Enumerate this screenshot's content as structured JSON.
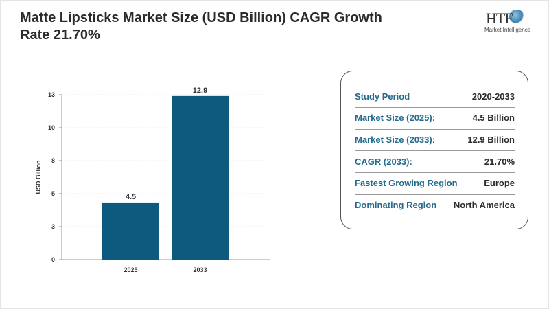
{
  "header": {
    "title": "Matte Lipsticks Market Size (USD Billion) CAGR Growth Rate 21.70%",
    "logo_text": "HTF",
    "logo_subtitle": "Market Intelligence"
  },
  "chart_data": {
    "type": "bar",
    "categories": [
      "2025",
      "2033"
    ],
    "values": [
      4.5,
      12.9
    ],
    "data_labels": [
      "4.5",
      "12.9"
    ],
    "ylabel": "USD Billion",
    "xlabel": "",
    "ylim": [
      0,
      13
    ],
    "yticks": [
      0,
      2.6,
      5.2,
      7.8,
      10.4,
      13
    ],
    "ytick_labels": [
      "0",
      "3",
      "5",
      "8",
      "10",
      "13"
    ],
    "bar_color": "#0e5a7e",
    "grid": true
  },
  "summary": [
    {
      "label": "Study Period",
      "value": "2020-2033"
    },
    {
      "label": "Market Size (2025):",
      "value": "4.5 Billion"
    },
    {
      "label": "Market Size (2033):",
      "value": "12.9 Billion"
    },
    {
      "label": "CAGR (2033):",
      "value": "21.70%"
    },
    {
      "label": "Fastest Growing Region",
      "value": "Europe"
    },
    {
      "label": "Dominating Region",
      "value": "North America"
    }
  ]
}
